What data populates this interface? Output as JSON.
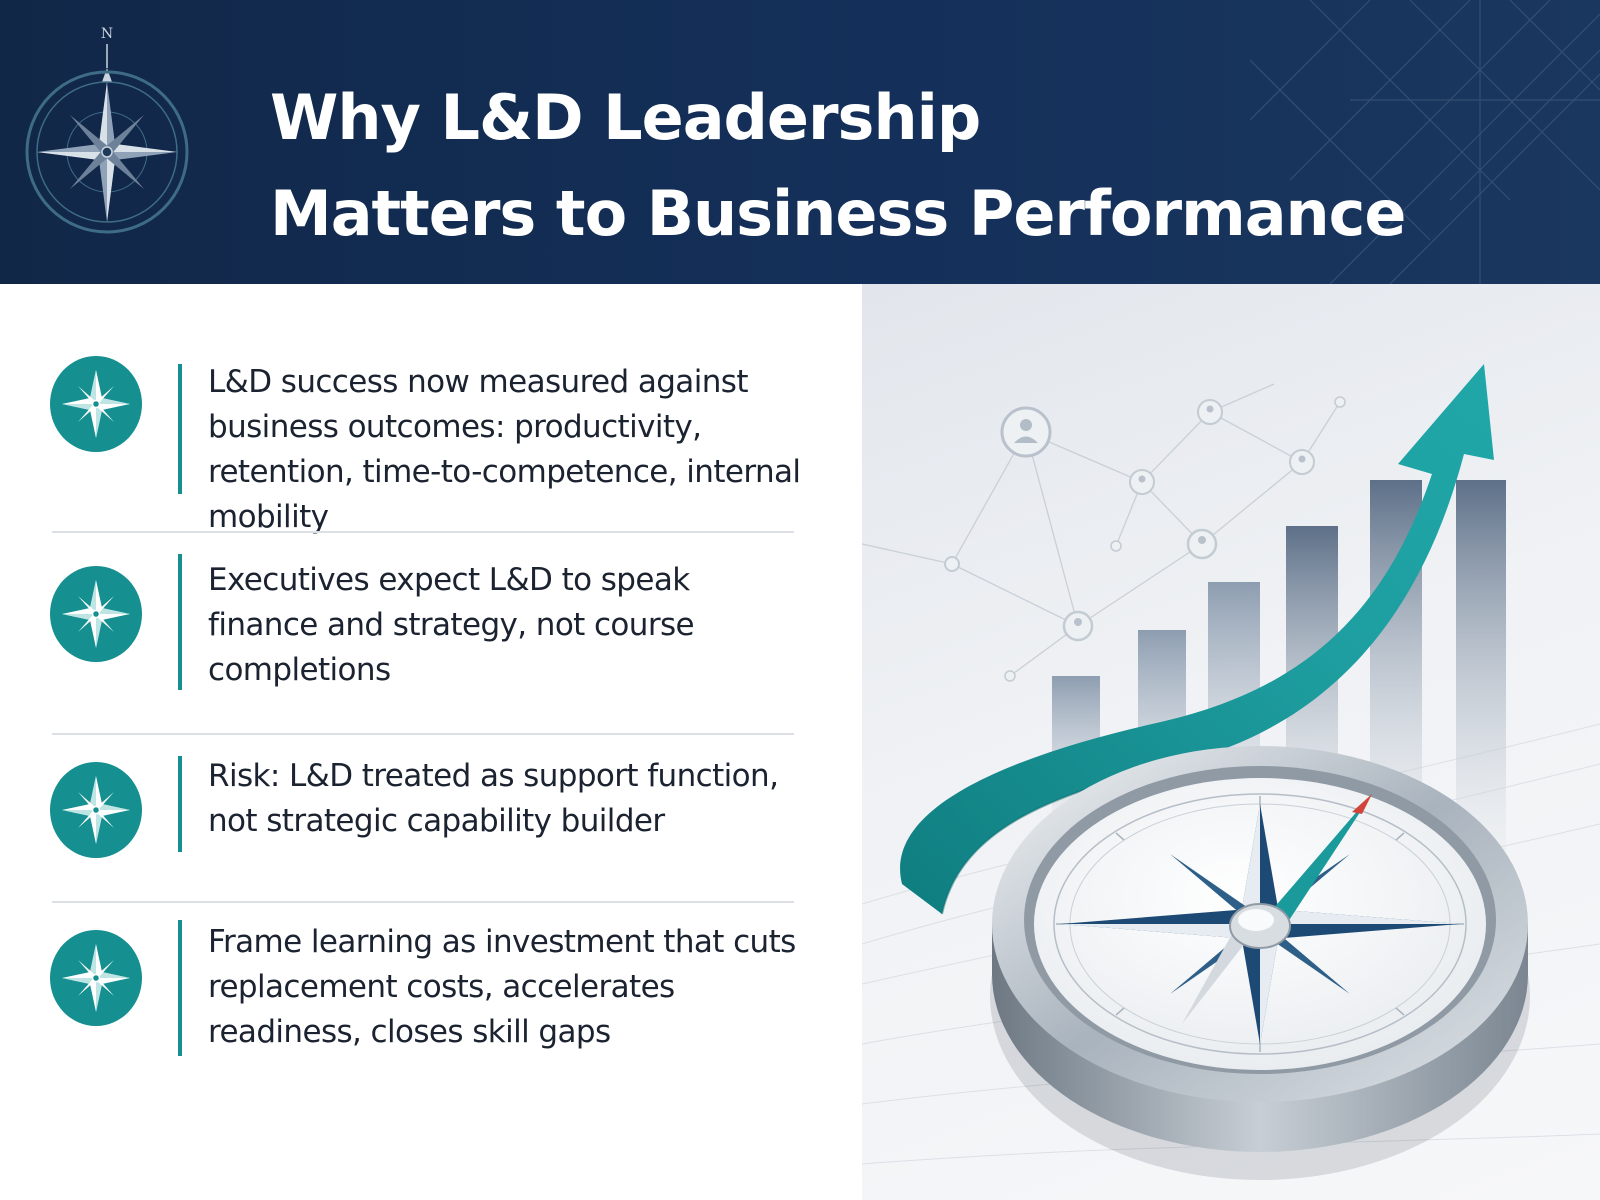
{
  "header": {
    "title_line1": "Why L&D Leadership",
    "title_line2": "Matters to Business Performance",
    "compass_north": "N"
  },
  "points": [
    {
      "icon": "compass-star-icon",
      "text": "L&D success now measured against business outcomes: productivity, retention, time-to-competence, internal mobility"
    },
    {
      "icon": "compass-star-icon",
      "text": "Executives expect L&D to speak finance and strategy, not course completions"
    },
    {
      "icon": "compass-star-icon",
      "text": "Risk: L&D treated as support function, not strategic capability builder"
    },
    {
      "icon": "compass-star-icon",
      "text": "Frame learning as investment that cuts replacement costs, accelerates readiness, closes skill gaps"
    }
  ],
  "colors": {
    "navy": "#112748",
    "teal": "#158f90",
    "text": "#1b2230"
  }
}
